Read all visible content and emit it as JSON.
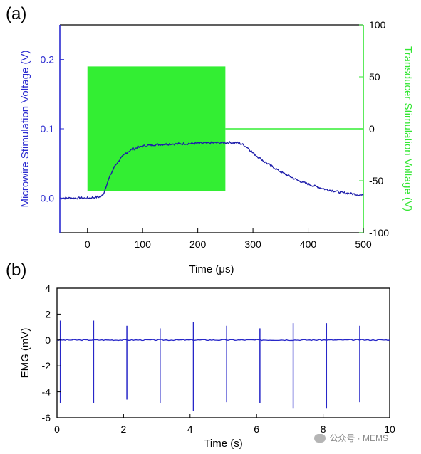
{
  "chart_data": [
    {
      "panel": "(a)",
      "type": "line",
      "xlabel": "Time (μs)",
      "xlim": [
        -50,
        500
      ],
      "xticks": [
        0,
        100,
        200,
        300,
        400,
        500
      ],
      "ylabel": "Microwire Stimulation Voltage (V)",
      "ylim": [
        -0.05,
        0.25
      ],
      "yticks": [
        "0.0",
        "0.1",
        "0.2"
      ],
      "ytick_values": [
        0.0,
        0.1,
        0.2
      ],
      "y2label": "Transducer Stimulation Voltage (V)",
      "y2lim": [
        -100,
        100
      ],
      "y2ticks": [
        -100,
        -50,
        0,
        50,
        100
      ],
      "colors": {
        "left_axis": "#2b2bd0",
        "right_axis": "#33e633",
        "series1": "#1c1caa",
        "series2": "#33ee33"
      },
      "series": [
        {
          "axis": "left",
          "x": [
            -50,
            0,
            25,
            30,
            35,
            40,
            50,
            60,
            70,
            80,
            100,
            120,
            150,
            200,
            250,
            270,
            280,
            290,
            300,
            320,
            350,
            380,
            400,
            430,
            460,
            500
          ],
          "y": [
            0.0,
            0.0,
            0.002,
            0.008,
            0.02,
            0.03,
            0.047,
            0.057,
            0.065,
            0.07,
            0.075,
            0.077,
            0.078,
            0.079,
            0.08,
            0.08,
            0.078,
            0.073,
            0.065,
            0.053,
            0.038,
            0.026,
            0.02,
            0.013,
            0.008,
            0.004
          ]
        },
        {
          "axis": "right",
          "x": [
            -50,
            0,
            0,
            250,
            250,
            500
          ],
          "y": [
            0,
            0,
            -60,
            -60,
            60,
            0
          ],
          "fill": {
            "x": [
              0,
              250
            ],
            "y": [
              -60,
              60
            ]
          }
        }
      ]
    },
    {
      "panel": "(b)",
      "type": "line",
      "xlabel": "Time (s)",
      "xlim": [
        0,
        10
      ],
      "xticks": [
        0,
        2,
        4,
        6,
        8,
        10
      ],
      "ylabel": "EMG (mV)",
      "ylim": [
        -6,
        4
      ],
      "yticks": [
        -6,
        -4,
        -2,
        0,
        2,
        4
      ],
      "colors": {
        "series": "#2727c8"
      },
      "baseline": 0,
      "pulses": {
        "times": [
          0.1,
          1.1,
          2.1,
          3.1,
          4.1,
          5.1,
          6.1,
          7.1,
          8.1,
          9.1
        ],
        "peaks": [
          1.5,
          1.5,
          1.1,
          0.9,
          1.4,
          1.1,
          0.9,
          1.3,
          1.3,
          1.1
        ],
        "troughs": [
          -4.9,
          -4.9,
          -4.6,
          -4.9,
          -5.5,
          -4.8,
          -4.9,
          -5.3,
          -5.3,
          -4.8
        ]
      }
    }
  ],
  "labels": {
    "panel_a": "(a)",
    "panel_b": "(b)"
  },
  "watermark": {
    "text": "公众号 · MEMS"
  }
}
